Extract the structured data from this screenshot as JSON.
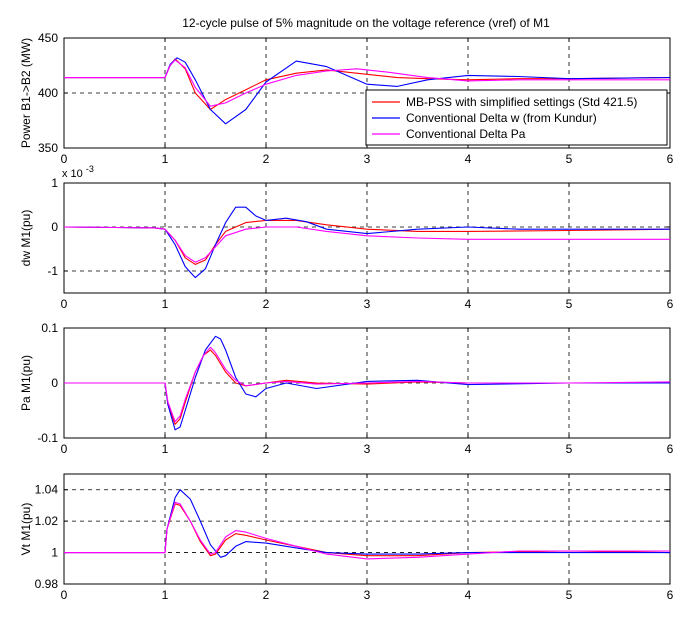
{
  "figure": {
    "title": "12-cycle pulse of 5% magnitude on the voltage reference (vref) of M1",
    "background": "#ffffff"
  },
  "legend": {
    "placement": "inside-top-right of first panel",
    "entries": [
      {
        "label": "MB-PSS with simplified settings (Std 421.5)",
        "color": "#ff0000"
      },
      {
        "label": "Conventional Delta w (from Kundur)",
        "color": "#0000ff"
      },
      {
        "label": "Conventional Delta Pa",
        "color": "#ff00ff"
      }
    ]
  },
  "chart_data": [
    {
      "type": "line",
      "title": "12-cycle pulse of 5% magnitude on the voltage reference (vref) of M1",
      "ylabel": "Power B1->B2 (MW)",
      "xlabel": "",
      "xlim": [
        0,
        6
      ],
      "ylim": [
        350,
        450
      ],
      "yticks": [
        "350",
        "400",
        "450"
      ],
      "xticks": [
        "0",
        "1",
        "2",
        "3",
        "4",
        "5",
        "6"
      ],
      "exponent_label": "",
      "grid": true,
      "series": [
        {
          "name": "MB-PSS with simplified settings (Std 421.5)",
          "color": "#ff0000",
          "x": [
            0,
            1.0,
            1.05,
            1.1,
            1.2,
            1.3,
            1.45,
            1.6,
            1.8,
            2.0,
            2.3,
            2.6,
            3.0,
            3.3,
            3.6,
            4.0,
            4.5,
            5.0,
            6.0
          ],
          "y": [
            414,
            414,
            425,
            431,
            422,
            400,
            385,
            394,
            403,
            412,
            418,
            421,
            417,
            414,
            413,
            412,
            413,
            413,
            414
          ]
        },
        {
          "name": "Conventional Delta w (from Kundur)",
          "color": "#0000ff",
          "x": [
            0,
            1.0,
            1.05,
            1.12,
            1.2,
            1.3,
            1.45,
            1.6,
            1.8,
            2.0,
            2.3,
            2.6,
            3.0,
            3.3,
            3.6,
            4.0,
            4.5,
            5.0,
            6.0
          ],
          "y": [
            414,
            414,
            426,
            432,
            428,
            412,
            385,
            372,
            385,
            410,
            429,
            424,
            408,
            406,
            412,
            416,
            415,
            413,
            414
          ]
        },
        {
          "name": "Conventional Delta Pa",
          "color": "#ff00ff",
          "x": [
            0,
            1.0,
            1.05,
            1.1,
            1.2,
            1.3,
            1.45,
            1.6,
            1.8,
            2.0,
            2.3,
            2.6,
            2.9,
            3.2,
            3.6,
            4.0,
            4.5,
            5.0,
            6.0
          ],
          "y": [
            414,
            414,
            425,
            430,
            423,
            405,
            388,
            391,
            400,
            408,
            416,
            420,
            422,
            419,
            414,
            411,
            412,
            412,
            412
          ]
        }
      ]
    },
    {
      "type": "line",
      "title": "",
      "ylabel": "dw M1(pu)",
      "xlabel": "",
      "xlim": [
        0,
        6
      ],
      "ylim": [
        -1.5,
        1
      ],
      "yticks": [
        "-1",
        "0",
        "1"
      ],
      "xticks": [
        "0",
        "1",
        "2",
        "3",
        "4",
        "5",
        "6"
      ],
      "exponent_label": "x 10",
      "exponent_value": "-3",
      "grid": true,
      "series": [
        {
          "name": "MB-PSS with simplified settings (Std 421.5)",
          "color": "#ff0000",
          "x": [
            0,
            0.9,
            1.0,
            1.1,
            1.2,
            1.3,
            1.4,
            1.5,
            1.6,
            1.8,
            2.0,
            2.3,
            2.6,
            3.0,
            3.5,
            4.0,
            5.0,
            6.0
          ],
          "y": [
            0,
            -0.02,
            -0.05,
            -0.3,
            -0.7,
            -0.85,
            -0.75,
            -0.4,
            -0.1,
            0.1,
            0.15,
            0.15,
            0.05,
            -0.05,
            -0.1,
            -0.1,
            -0.08,
            -0.05
          ]
        },
        {
          "name": "Conventional Delta w (from Kundur)",
          "color": "#0000ff",
          "x": [
            0,
            0.9,
            1.0,
            1.1,
            1.2,
            1.3,
            1.4,
            1.5,
            1.6,
            1.7,
            1.8,
            1.9,
            2.0,
            2.2,
            2.4,
            2.6,
            3.0,
            3.5,
            4.0,
            4.5,
            5.0,
            6.0
          ],
          "y": [
            0,
            -0.02,
            -0.05,
            -0.4,
            -0.9,
            -1.15,
            -0.95,
            -0.4,
            0.1,
            0.45,
            0.45,
            0.25,
            0.15,
            0.2,
            0.12,
            -0.05,
            -0.15,
            -0.05,
            0.0,
            -0.05,
            -0.05,
            -0.05
          ]
        },
        {
          "name": "Conventional Delta Pa",
          "color": "#ff00ff",
          "x": [
            0,
            0.9,
            1.0,
            1.1,
            1.2,
            1.3,
            1.4,
            1.5,
            1.6,
            1.8,
            2.0,
            2.3,
            2.6,
            3.0,
            3.5,
            4.0,
            5.0,
            6.0
          ],
          "y": [
            0,
            -0.02,
            -0.05,
            -0.3,
            -0.65,
            -0.8,
            -0.7,
            -0.45,
            -0.2,
            -0.05,
            0.0,
            0.0,
            -0.1,
            -0.2,
            -0.25,
            -0.28,
            -0.28,
            -0.28
          ]
        }
      ]
    },
    {
      "type": "line",
      "title": "",
      "ylabel": "Pa M1(pu)",
      "xlabel": "",
      "xlim": [
        0,
        6
      ],
      "ylim": [
        -0.1,
        0.1
      ],
      "yticks": [
        "-0.1",
        "0",
        "0.1"
      ],
      "xticks": [
        "0",
        "1",
        "2",
        "3",
        "4",
        "5",
        "6"
      ],
      "exponent_label": "",
      "grid": true,
      "series": [
        {
          "name": "MB-PSS with simplified settings (Std 421.5)",
          "color": "#ff0000",
          "x": [
            0,
            1.0,
            1.03,
            1.1,
            1.15,
            1.2,
            1.3,
            1.38,
            1.45,
            1.5,
            1.6,
            1.7,
            1.8,
            2.0,
            2.2,
            2.5,
            3.0,
            3.5,
            4.0,
            5.0,
            6.0
          ],
          "y": [
            0,
            0,
            -0.04,
            -0.075,
            -0.065,
            -0.035,
            0.02,
            0.05,
            0.06,
            0.05,
            0.02,
            0.0,
            -0.005,
            0.0,
            0.005,
            0.0,
            -0.002,
            0.002,
            0.0,
            0.0,
            0.0
          ]
        },
        {
          "name": "Conventional Delta w (from Kundur)",
          "color": "#0000ff",
          "x": [
            0,
            1.0,
            1.03,
            1.1,
            1.15,
            1.2,
            1.3,
            1.4,
            1.5,
            1.55,
            1.6,
            1.7,
            1.8,
            1.9,
            2.0,
            2.2,
            2.5,
            3.0,
            3.5,
            4.0,
            5.0,
            6.0
          ],
          "y": [
            0,
            0,
            -0.04,
            -0.085,
            -0.08,
            -0.05,
            0.01,
            0.06,
            0.085,
            0.08,
            0.06,
            0.01,
            -0.02,
            -0.025,
            -0.01,
            0.0,
            -0.01,
            0.003,
            0.005,
            -0.003,
            0.0,
            0.0
          ]
        },
        {
          "name": "Conventional Delta Pa",
          "color": "#ff00ff",
          "x": [
            0,
            1.0,
            1.03,
            1.1,
            1.15,
            1.2,
            1.3,
            1.38,
            1.45,
            1.5,
            1.6,
            1.7,
            1.8,
            2.0,
            2.2,
            2.5,
            3.0,
            3.5,
            4.0,
            5.0,
            6.0
          ],
          "y": [
            0,
            0,
            -0.035,
            -0.07,
            -0.06,
            -0.03,
            0.02,
            0.05,
            0.065,
            0.055,
            0.025,
            0.005,
            -0.005,
            0.0,
            0.003,
            -0.002,
            0.0,
            0.003,
            0.0,
            0.0,
            0.002
          ]
        }
      ]
    },
    {
      "type": "line",
      "title": "",
      "ylabel": "Vt M1(pu)",
      "xlabel": "",
      "xlim": [
        0,
        6
      ],
      "ylim": [
        0.98,
        1.05
      ],
      "yticks": [
        "0.98",
        "1",
        "1.02",
        "1.04"
      ],
      "xticks": [
        "0",
        "1",
        "2",
        "3",
        "4",
        "5",
        "6"
      ],
      "exponent_label": "",
      "grid": true,
      "series": [
        {
          "name": "MB-PSS with simplified settings (Std 421.5)",
          "color": "#ff0000",
          "x": [
            0,
            1.0,
            1.02,
            1.1,
            1.15,
            1.25,
            1.35,
            1.45,
            1.5,
            1.6,
            1.7,
            1.8,
            2.0,
            2.3,
            2.6,
            3.0,
            3.5,
            4.0,
            5.0,
            6.0
          ],
          "y": [
            1.0,
            1.0,
            1.015,
            1.031,
            1.03,
            1.02,
            1.007,
            0.998,
            0.999,
            1.008,
            1.012,
            1.011,
            1.008,
            1.004,
            1.0,
            0.998,
            0.998,
            1.0,
            1.001,
            1.0
          ]
        },
        {
          "name": "Conventional Delta w (from Kundur)",
          "color": "#0000ff",
          "x": [
            0,
            1.0,
            1.02,
            1.1,
            1.15,
            1.25,
            1.35,
            1.45,
            1.55,
            1.6,
            1.7,
            1.8,
            2.0,
            2.3,
            2.6,
            3.0,
            3.5,
            4.0,
            5.0,
            6.0
          ],
          "y": [
            1.0,
            1.0,
            1.015,
            1.035,
            1.04,
            1.034,
            1.02,
            1.005,
            0.997,
            0.998,
            1.004,
            1.007,
            1.006,
            1.003,
            1.0,
            0.999,
            0.999,
            1.0,
            1.0,
            1.0
          ]
        },
        {
          "name": "Conventional Delta Pa",
          "color": "#ff00ff",
          "x": [
            0,
            1.0,
            1.02,
            1.1,
            1.15,
            1.25,
            1.35,
            1.45,
            1.5,
            1.6,
            1.7,
            1.8,
            2.0,
            2.3,
            2.6,
            3.0,
            3.5,
            4.0,
            4.5,
            5.0,
            6.0
          ],
          "y": [
            1.0,
            1.0,
            1.015,
            1.032,
            1.031,
            1.02,
            1.008,
            0.999,
            1.0,
            1.01,
            1.014,
            1.013,
            1.009,
            1.004,
            0.999,
            0.996,
            0.997,
            0.999,
            1.001,
            1.001,
            1.001
          ]
        }
      ]
    }
  ]
}
